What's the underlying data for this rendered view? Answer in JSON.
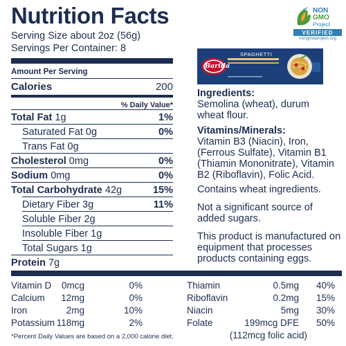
{
  "label": {
    "title": "Nutrition Facts",
    "serving_size": "Serving Size about 2oz (56g)",
    "servings_per_container": "Servings Per Container: 8",
    "amount_per_serving": "Amount Per Serving",
    "calories_label": "Calories",
    "calories_value": "200",
    "daily_value_header": "% Daily Value*",
    "nutrients": [
      {
        "label": "Total Fat",
        "amount": "1g",
        "dv": "1%"
      },
      {
        "label": "Saturated Fat",
        "amount": "0g",
        "dv": "0%"
      },
      {
        "label": "Trans Fat",
        "amount": "0g",
        "dv": ""
      },
      {
        "label": "Cholesterol",
        "amount": "0mg",
        "dv": "0%"
      },
      {
        "label": "Sodium",
        "amount": "0mg",
        "dv": "0%"
      },
      {
        "label": "Total Carbohydrate",
        "amount": "42g",
        "dv": "15%"
      },
      {
        "label": "Dietary Fiber",
        "amount": "3g",
        "dv": "11%"
      },
      {
        "label": "Soluble Fiber",
        "amount": "2g",
        "dv": ""
      },
      {
        "label": "Insoluble Fiber",
        "amount": "1g",
        "dv": ""
      },
      {
        "label": "Total Sugars",
        "amount": "1g",
        "dv": ""
      },
      {
        "label": "Protein",
        "amount": "7g",
        "dv": ""
      }
    ],
    "vitamins_left": [
      {
        "label": "Vitamin D",
        "amount": "0mcg",
        "dv": "0%"
      },
      {
        "label": "Calcium",
        "amount": "12mg",
        "dv": "0%"
      },
      {
        "label": "Iron",
        "amount": "2mg",
        "dv": "10%"
      },
      {
        "label": "Potassium",
        "amount": "118mg",
        "dv": "2%"
      }
    ],
    "vitamins_right": [
      {
        "label": "Thiamin",
        "amount": "0.5mg",
        "dv": "40%"
      },
      {
        "label": "Riboflavin",
        "amount": "0.2mg",
        "dv": "15%"
      },
      {
        "label": "Niacin",
        "amount": "5mg",
        "dv": "30%"
      },
      {
        "label": "Folate",
        "amount": "199mcg DFE",
        "dv": "50%"
      }
    ],
    "folate_note": "(112mcg folic acid)",
    "footnote": "*Percent Daily Values are based on a 2,000 calorie diet."
  },
  "logo": {
    "line1": "NON",
    "line2": "GMO",
    "line3": "Project",
    "verified": "VERIFIED",
    "url": "nongmoproject.org"
  },
  "package": {
    "brand": "Barilla",
    "product": "SPAGHETTI"
  },
  "info": {
    "ingredients_heading": "Ingredients:",
    "ingredients_text": "Semolina (wheat), durum wheat flour.",
    "vitamins_heading": "Vitamins/Minerals:",
    "vitamins_text": "Vitamin B3 (Niacin), Iron, (Ferrous Sulfate), Vitamin B1 (Thiamin Mononitrate), Vitamin B2 (Riboflavin), Folic Acid.",
    "allergen": "Contains wheat ingredients.",
    "sugars": "Not a significant source of added sugars.",
    "manufacturing": "This product is manufactured on equipment that processes products containing eggs."
  },
  "colors": {
    "navy": "#1d2d50",
    "logo_green": "#4f9a3a",
    "logo_blue": "#2e7fb8",
    "package_blue": "#1c3f7a",
    "barilla_red": "#c8102e"
  }
}
